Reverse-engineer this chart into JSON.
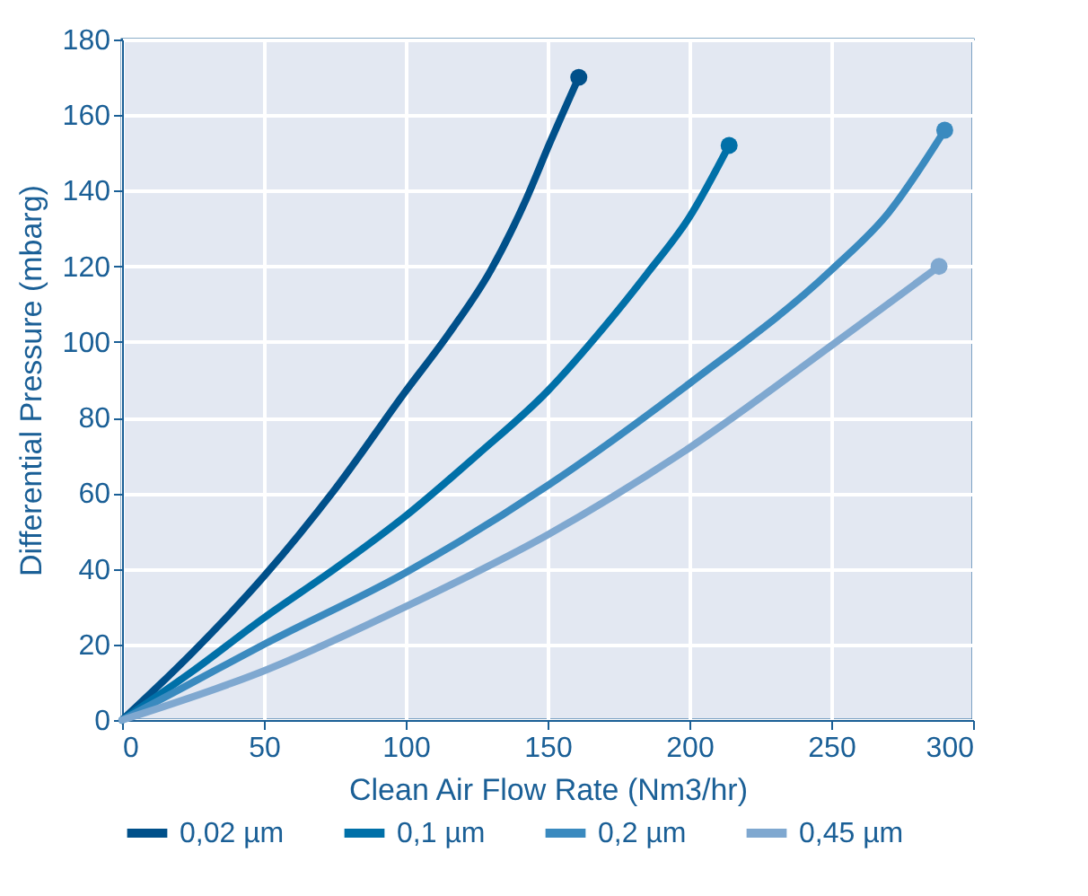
{
  "chart_data": {
    "type": "line",
    "xlabel": "Clean Air Flow Rate (Nm3/hr)",
    "ylabel": "Differential Pressure (mbarg)",
    "xlim": [
      0,
      300
    ],
    "xticks": [
      0,
      50,
      100,
      150,
      200,
      250,
      300
    ],
    "ylim": [
      0,
      180
    ],
    "yticks": [
      0,
      20,
      40,
      60,
      80,
      100,
      120,
      140,
      160,
      180
    ],
    "grid": true,
    "legend": "bottom",
    "marker": "none",
    "line_style": "solid",
    "series": [
      {
        "name": "0,02 µm",
        "color": "#00508a",
        "x": [
          0,
          25,
          50,
          75,
          100,
          115,
          130,
          142,
          151,
          161
        ],
        "values": [
          0,
          18,
          38,
          61,
          87,
          102,
          119,
          137,
          153,
          170
        ]
      },
      {
        "name": "0,1 µm",
        "color": "#0070a8",
        "x": [
          0,
          25,
          50,
          75,
          100,
          125,
          150,
          170,
          185,
          200,
          214
        ],
        "values": [
          0,
          13,
          27,
          40,
          54,
          70,
          87,
          104,
          118,
          133,
          152
        ]
      },
      {
        "name": "0,2 µm",
        "color": "#3a8abf",
        "x": [
          0,
          25,
          50,
          100,
          150,
          200,
          250,
          270,
          290
        ],
        "values": [
          0,
          10,
          20,
          39,
          62,
          89,
          119,
          134,
          156
        ]
      },
      {
        "name": "0,45 µm",
        "color": "#7fa8d0",
        "x": [
          0,
          50,
          100,
          150,
          200,
          250,
          288
        ],
        "values": [
          0,
          13,
          30,
          49,
          72,
          99,
          120
        ]
      },
      {
        "type": "scatter",
        "marker": "circle",
        "x": [
          161,
          214,
          290,
          288
        ],
        "values": [
          170,
          152,
          156,
          120
        ],
        "colors": [
          "#00508a",
          "#0070a8",
          "#3a8abf",
          "#7fa8d0"
        ]
      }
    ]
  }
}
